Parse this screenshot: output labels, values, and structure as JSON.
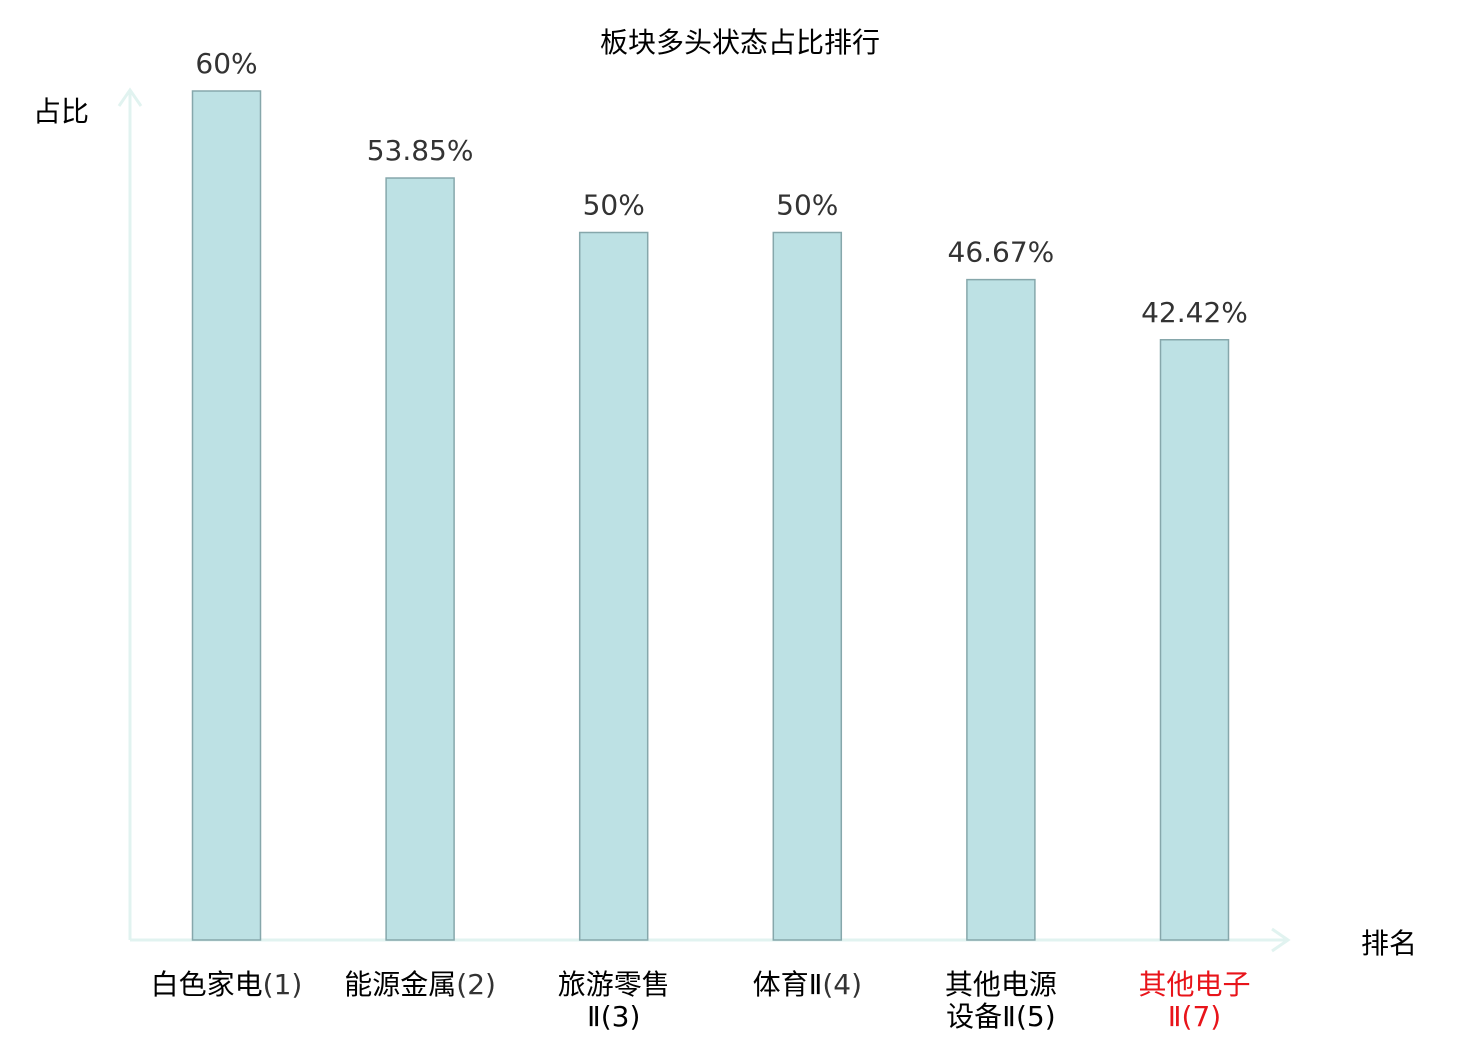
{
  "chart_data": {
    "type": "bar",
    "title": "板块多头状态占比排行",
    "ylabel": "占比",
    "xlabel": "排名",
    "ylim": [
      0,
      60
    ],
    "grid": false,
    "value_labels": [
      "60%",
      "53.85%",
      "50%",
      "50%",
      "46.67%",
      "42.42%"
    ],
    "categories": [
      {
        "line1": "白色家电",
        "rank": "(1)",
        "line2": "",
        "highlight": false
      },
      {
        "line1": "能源金属",
        "rank": "(2)",
        "line2": "",
        "highlight": false
      },
      {
        "line1": "旅游零售",
        "rank": "",
        "line2": "Ⅱ(3)",
        "highlight": false
      },
      {
        "line1": "体育Ⅱ",
        "rank": "(4)",
        "line2": "",
        "highlight": false
      },
      {
        "line1": "其他电源",
        "rank": "",
        "line2": "设备Ⅱ(5)",
        "highlight": false
      },
      {
        "line1": "其他电子",
        "rank": "",
        "line2": "Ⅱ(7)",
        "highlight": true
      }
    ],
    "values": [
      60,
      53.85,
      50,
      50,
      46.67,
      42.42
    ],
    "colors": {
      "bar_fill": "#bde1e4",
      "bar_stroke": "#86a7ab",
      "axis": "#e1f3f0",
      "text": "#333333",
      "label": "#000000",
      "highlight": "#e8141a"
    }
  }
}
